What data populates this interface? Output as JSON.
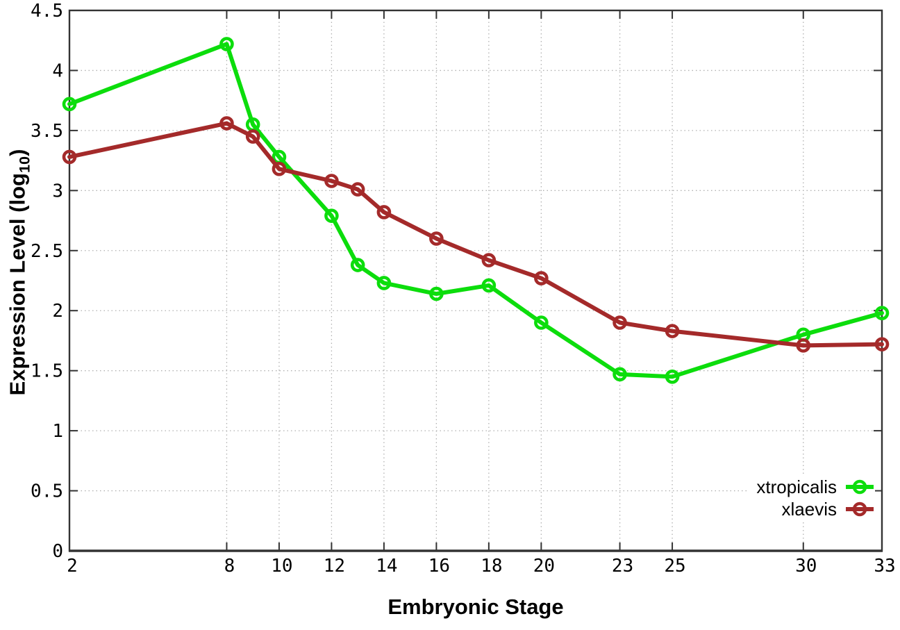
{
  "chart_data": {
    "type": "line",
    "title": "",
    "xlabel": "Embryonic Stage",
    "ylabel": "Expression Level (log10)",
    "ylabel_parts": {
      "prefix": "Expression Level (log",
      "subscript": "10",
      "suffix": ")"
    },
    "x": [
      2,
      8,
      9,
      10,
      12,
      13,
      14,
      16,
      18,
      20,
      23,
      25,
      30,
      33
    ],
    "series": [
      {
        "name": "xtropicalis",
        "color": "#0cdd0c",
        "values": [
          3.72,
          4.22,
          3.55,
          3.28,
          2.79,
          2.38,
          2.23,
          2.14,
          2.21,
          1.9,
          1.47,
          1.45,
          1.8,
          1.98
        ]
      },
      {
        "name": "xlaevis",
        "color": "#a42a2a",
        "values": [
          3.28,
          3.56,
          3.45,
          3.18,
          3.08,
          3.01,
          2.82,
          2.6,
          2.42,
          2.27,
          1.9,
          1.83,
          1.71,
          1.72
        ]
      }
    ],
    "xticks": {
      "values": [
        2,
        8,
        10,
        12,
        14,
        16,
        18,
        20,
        23,
        25,
        30,
        33
      ],
      "labels": [
        "2",
        "8",
        "10",
        "12",
        "14",
        "16",
        "18",
        "20",
        "23",
        "25",
        "30",
        "33"
      ]
    },
    "yticks": {
      "values": [
        0,
        0.5,
        1,
        1.5,
        2,
        2.5,
        3,
        3.5,
        4,
        4.5
      ],
      "labels": [
        "0",
        "0.5",
        "1",
        "1.5",
        "2",
        "2.5",
        "3",
        "3.5",
        "4",
        "4.5"
      ]
    },
    "xlim": [
      2,
      33
    ],
    "ylim": [
      0,
      4.5
    ],
    "grid": true,
    "legend_position": "bottom-right"
  },
  "colors": {
    "background": "#ffffff",
    "border": "#333333",
    "grid": "#b0b0b0",
    "tick_text": "#000000"
  }
}
